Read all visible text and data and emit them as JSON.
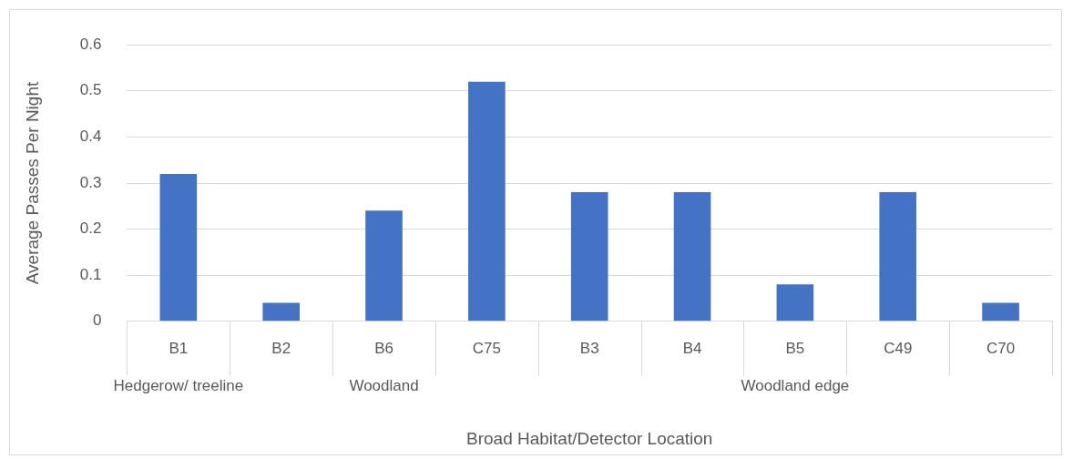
{
  "chart_data": {
    "type": "bar",
    "xlabel": "Broad Habitat/Detector Location",
    "ylabel": "Average Passes Per Night",
    "categories": [
      "B1",
      "B2",
      "B6",
      "C75",
      "B3",
      "B4",
      "B5",
      "C49",
      "C70"
    ],
    "values": [
      0.32,
      0.04,
      0.24,
      0.52,
      0.28,
      0.28,
      0.08,
      0.28,
      0.04
    ],
    "color": "#4472c4",
    "ylim": [
      0,
      0.6
    ],
    "yticks": [
      0,
      0.1,
      0.2,
      0.3,
      0.4,
      0.5,
      0.6
    ],
    "grid": "y",
    "legend": false,
    "annotations": [
      "Hedgerow/ treeline",
      "Woodland",
      "Woodland edge"
    ]
  }
}
